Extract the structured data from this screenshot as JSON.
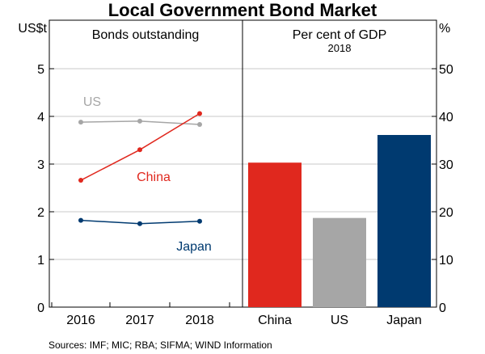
{
  "chart_data": [
    {
      "type": "line",
      "panel_title": "Bonds outstanding",
      "unit_label": "US$t",
      "x": [
        "2016",
        "2017",
        "2018"
      ],
      "ylim": [
        0,
        5
      ],
      "yticks": [
        "0",
        "1",
        "2",
        "3",
        "4",
        "5"
      ],
      "series": [
        {
          "name": "US",
          "values": [
            3.88,
            3.9,
            3.83
          ],
          "color": "#a6a6a6"
        },
        {
          "name": "China",
          "values": [
            2.66,
            3.3,
            4.06
          ],
          "color": "#e0281e"
        },
        {
          "name": "Japan",
          "values": [
            1.82,
            1.75,
            1.8
          ],
          "color": "#003a70"
        }
      ]
    },
    {
      "type": "bar",
      "panel_title": "Per cent of GDP",
      "panel_subtitle": "2018",
      "unit_label": "%",
      "categories": [
        "China",
        "US",
        "Japan"
      ],
      "values": [
        30.3,
        18.7,
        36.1
      ],
      "colors": [
        "#e0281e",
        "#a6a6a6",
        "#003a70"
      ],
      "ylim": [
        0,
        50
      ],
      "yticks": [
        "0",
        "10",
        "20",
        "30",
        "40",
        "50"
      ]
    }
  ],
  "title": "Local Government Bond Market",
  "sources": "Sources:  IMF; MIC; RBA; SIFMA; WIND Information",
  "grid": true
}
